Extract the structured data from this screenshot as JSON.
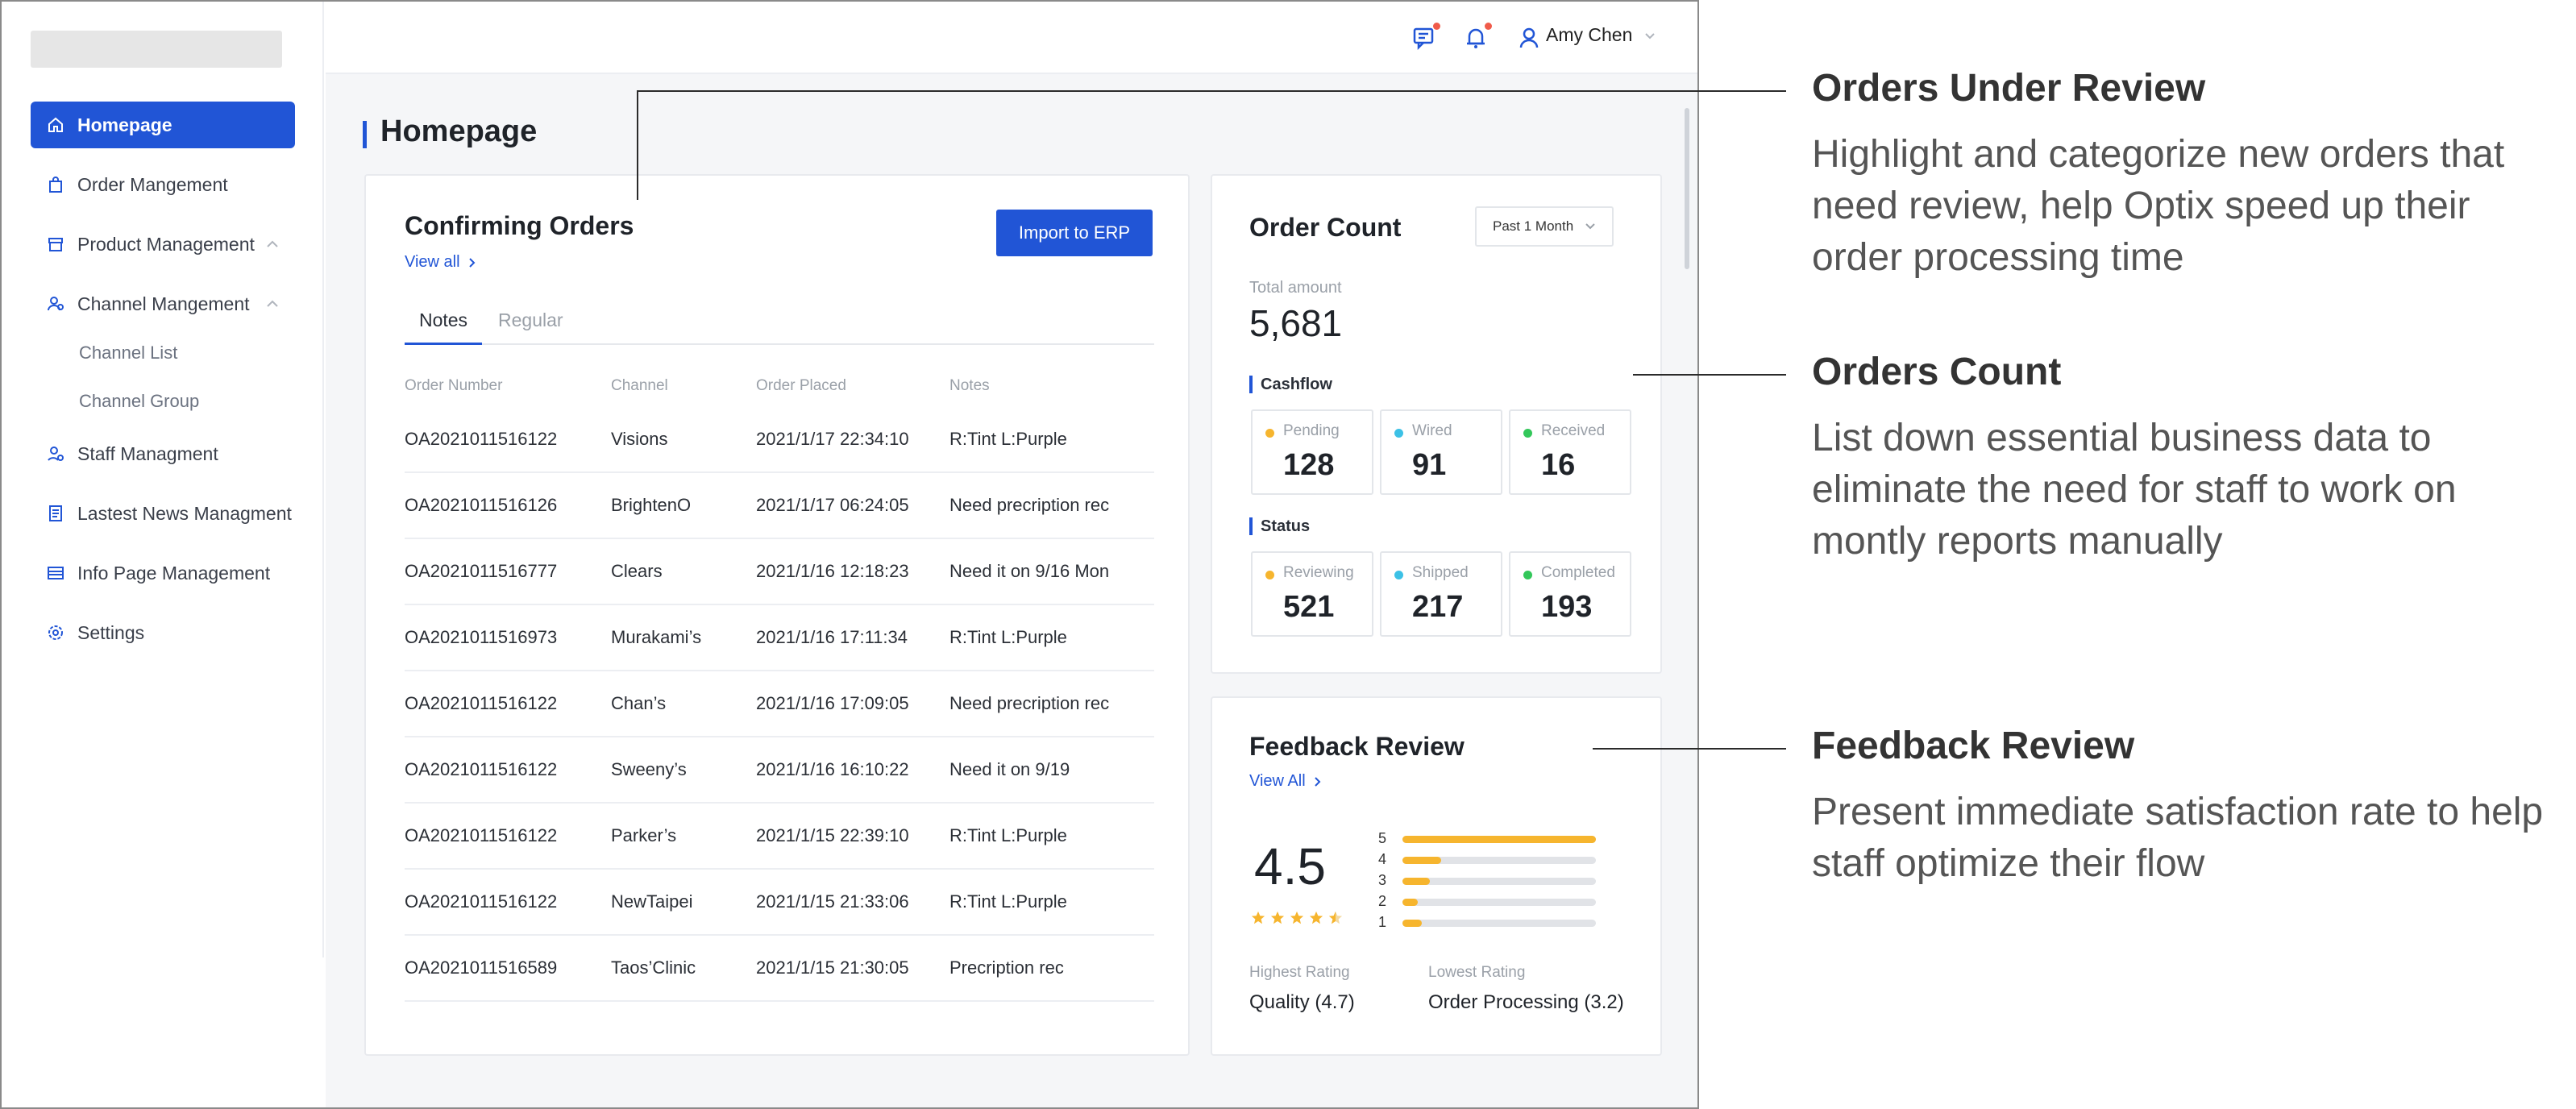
{
  "sidebar": {
    "items": [
      {
        "label": "Homepage",
        "icon": "home-icon"
      },
      {
        "label": "Order Mangement",
        "icon": "bag-icon"
      },
      {
        "label": "Product Management",
        "icon": "box-icon"
      },
      {
        "label": "Channel Mangement",
        "icon": "users-icon"
      },
      {
        "label": "Staff Managment",
        "icon": "user-gear-icon"
      },
      {
        "label": "Lastest News Managment",
        "icon": "document-icon"
      },
      {
        "label": "Info Page Management",
        "icon": "card-icon"
      },
      {
        "label": "Settings",
        "icon": "gear-icon"
      }
    ],
    "channel_sub": [
      "Channel List",
      "Channel Group"
    ]
  },
  "topbar": {
    "user_name": "Amy Chen"
  },
  "page": {
    "title": "Homepage"
  },
  "orders": {
    "title": "Confirming Orders",
    "view_all": "View all",
    "import_button": "Import to ERP",
    "tabs": [
      "Notes",
      "Regular"
    ],
    "columns": [
      "Order Number",
      "Channel",
      "Order Placed",
      "Notes"
    ],
    "rows": [
      [
        "OA2021011516122",
        "Visions",
        "2021/1/17 22:34:10",
        "R:Tint L:Purple"
      ],
      [
        "OA2021011516126",
        "BrightenO",
        "2021/1/17 06:24:05",
        "Need precription rec"
      ],
      [
        "OA2021011516777",
        "Clears",
        "2021/1/16 12:18:23",
        "Need it on 9/16 Mon"
      ],
      [
        "OA2021011516973",
        "Murakami’s",
        "2021/1/16 17:11:34",
        "R:Tint L:Purple"
      ],
      [
        "OA2021011516122",
        "Chan’s",
        "2021/1/16 17:09:05",
        "Need precription rec"
      ],
      [
        "OA2021011516122",
        "Sweeny’s",
        "2021/1/16 16:10:22",
        "Need it on 9/19"
      ],
      [
        "OA2021011516122",
        "Parker’s",
        "2021/1/15 22:39:10",
        "R:Tint L:Purple"
      ],
      [
        "OA2021011516122",
        "NewTaipei",
        "2021/1/15 21:33:06",
        "R:Tint L:Purple"
      ],
      [
        "OA2021011516589",
        "Taos’Clinic",
        "2021/1/15 21:30:05",
        "Precription rec"
      ]
    ]
  },
  "count": {
    "title": "Order Count",
    "range": "Past 1 Month",
    "total_label": "Total amount",
    "total": "5,681",
    "cashflow_label": "Cashflow",
    "cashflow": [
      {
        "label": "Pending",
        "value": "128",
        "color": "#f6b52e"
      },
      {
        "label": "Wired",
        "value": "91",
        "color": "#3cc1e6"
      },
      {
        "label": "Received",
        "value": "16",
        "color": "#33c75a"
      }
    ],
    "status_label": "Status",
    "status": [
      {
        "label": "Reviewing",
        "value": "521",
        "color": "#f6b52e"
      },
      {
        "label": "Shipped",
        "value": "217",
        "color": "#3cc1e6"
      },
      {
        "label": "Completed",
        "value": "193",
        "color": "#33c75a"
      }
    ]
  },
  "feedback": {
    "title": "Feedback Review",
    "view_all": "View All",
    "rating": "4.5",
    "distribution": [
      {
        "star": "5",
        "fraction": 1.0
      },
      {
        "star": "4",
        "fraction": 0.2
      },
      {
        "star": "3",
        "fraction": 0.14
      },
      {
        "star": "2",
        "fraction": 0.08
      },
      {
        "star": "1",
        "fraction": 0.1
      }
    ],
    "highest_label": "Highest Rating",
    "highest_value": "Quality (4.7)",
    "lowest_label": "Lowest Rating",
    "lowest_value": "Order Processing (3.2)"
  },
  "annotations": [
    {
      "title": "Orders Under Review",
      "desc": "Highlight and categorize new orders that need review, help Optix speed up their order processing time"
    },
    {
      "title": "Orders Count",
      "desc": "List down essential business data to eliminate the need for staff to work on montly reports manually"
    },
    {
      "title": "Feedback Review",
      "desc": "Present immediate satisfaction rate to help staff optimize their flow"
    }
  ],
  "colors": {
    "primary": "#2155d6",
    "star": "#f6b52e",
    "alert_dot": "#f05b4a"
  }
}
